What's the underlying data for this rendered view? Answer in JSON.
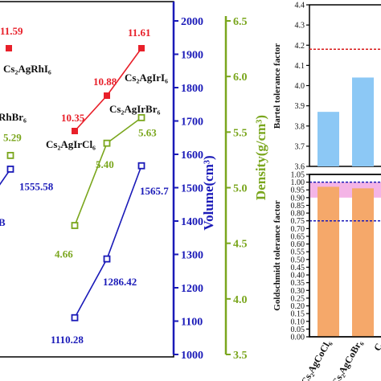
{
  "chart_data": [
    {
      "type": "line",
      "title": "",
      "colors": {
        "energy": "#e8202a",
        "density": "#7aa61d",
        "volume": "#1a1ab8"
      },
      "volume_axis": {
        "label": "Volume(cm³)",
        "ylim": [
          1000,
          2000
        ],
        "ticks": [
          "1000",
          "1100",
          "1200",
          "1300",
          "1400",
          "1500",
          "1600",
          "1700",
          "1800",
          "1900",
          "2000"
        ]
      },
      "density_axis": {
        "label": "Density(g/cm³)",
        "ylim": [
          3.5,
          6.5
        ],
        "ticks": [
          "3.5",
          "4.0",
          "4.5",
          "5.0",
          "5.5",
          "6.0",
          "6.5"
        ]
      },
      "series": [
        {
          "key": "energy_rh",
          "color": "#e8202a",
          "points": [
            {
              "label": "11.59",
              "compound": "Cs2AgRhI6"
            }
          ]
        },
        {
          "key": "energy_ir",
          "color": "#e8202a",
          "points": [
            {
              "label": "10.35",
              "compound": "Cs2AgIrCl6"
            },
            {
              "label": "10.88",
              "compound": "Cs2AgIrBr6"
            },
            {
              "label": "11.61",
              "compound": "Cs2AgIrI6"
            }
          ]
        },
        {
          "key": "density_rh",
          "color": "#7aa61d",
          "points": [
            {
              "label": "5.29",
              "value": 5.29
            }
          ]
        },
        {
          "key": "density_ir",
          "color": "#7aa61d",
          "points": [
            {
              "label": "4.66",
              "value": 4.66
            },
            {
              "label": "5.40",
              "value": 5.4
            },
            {
              "label": "5.63",
              "value": 5.63
            }
          ]
        },
        {
          "key": "volume_rh",
          "color": "#1a1ab8",
          "points": [
            {
              "label": "1555.58",
              "value": 1555.58
            }
          ]
        },
        {
          "key": "volume_ir",
          "color": "#1a1ab8",
          "points": [
            {
              "label": "1110.28",
              "value": 1110.28
            },
            {
              "label": "1286.42",
              "value": 1286.42
            },
            {
              "label": "1565.7",
              "value": 1565.7
            }
          ]
        }
      ],
      "compound_labels": {
        "rhi6": "Cs₂AgRhI₆",
        "rhbr6_partial": "RhBr₆",
        "irbr6": "Cs₂AgIrBr₆",
        "iri6": "Cs₂AgIrI₆",
        "ircl6": "Cs₂AgIrCl₆",
        "cut_left": "B"
      }
    },
    {
      "type": "bar",
      "title": "",
      "ylabel": "Bartel tolerance factor",
      "ylim": [
        3.6,
        4.4
      ],
      "ticks": [
        "3.6",
        "3.7",
        "3.8",
        "3.9",
        "4.0",
        "4.1",
        "4.2",
        "4.3",
        "4.4"
      ],
      "categories": [
        "Cs₂AgCoCl₆",
        "Cs₂AgCoBr₆"
      ],
      "values": [
        3.87,
        4.04
      ],
      "bar_color": "#8cc8f5",
      "reference_line": {
        "value": 4.18,
        "color": "#d81818"
      }
    },
    {
      "type": "bar",
      "title": "",
      "ylabel": "Goldschmidt tolerance factor",
      "ylim": [
        0.0,
        1.05
      ],
      "ticks": [
        "0.00",
        "0.05",
        "0.10",
        "0.15",
        "0.20",
        "0.25",
        "0.30",
        "0.35",
        "0.40",
        "0.45",
        "0.50",
        "0.55",
        "0.60",
        "0.65",
        "0.70",
        "0.75",
        "0.80",
        "0.85",
        "0.90",
        "0.95",
        "1.00",
        "1.05"
      ],
      "categories": [
        "Cs₂AgCoCl₆",
        "Cs₂AgCoBr₆"
      ],
      "values": [
        0.97,
        0.96
      ],
      "bar_color": "#f5a86a",
      "band": {
        "range": [
          0.9,
          1.0
        ],
        "color": "#f4b4e6"
      },
      "reference_lines": [
        {
          "value": 1.0,
          "color": "#1a1ab8"
        },
        {
          "value": 0.75,
          "color": "#1a1ab8"
        }
      ],
      "x_cut_label": "C"
    }
  ]
}
